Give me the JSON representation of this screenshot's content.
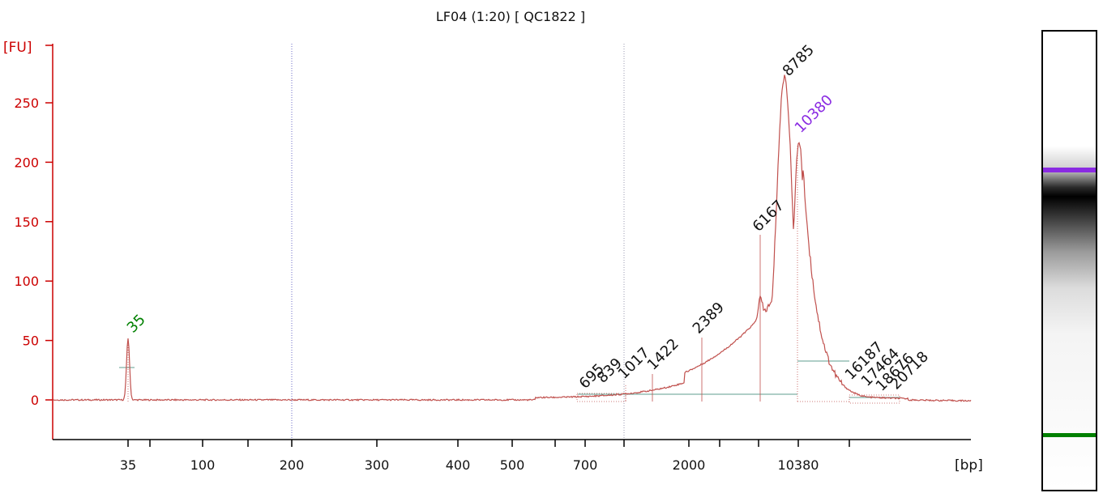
{
  "chart_data": {
    "type": "line",
    "title": "LF04 (1:20)  [ QC1822 ]",
    "ylabel": "[FU]",
    "xlabel": "[bp]",
    "ylim": [
      -30,
      300
    ],
    "y_ticks": [
      0,
      50,
      100,
      150,
      200,
      250
    ],
    "x_tick_labels": [
      "35",
      "100",
      "200",
      "300",
      "400",
      "500",
      "700",
      "2000",
      "10380"
    ],
    "peaks": [
      {
        "label": "35",
        "height": 52,
        "kind": "lower-marker"
      },
      {
        "label": "695",
        "height": 5
      },
      {
        "label": "839",
        "height": 6
      },
      {
        "label": "1017",
        "height": 10
      },
      {
        "label": "1422",
        "height": 20
      },
      {
        "label": "2389",
        "height": 53
      },
      {
        "label": "6167",
        "height": 140
      },
      {
        "label": "8785",
        "height": 272
      },
      {
        "label": "10380",
        "height": 218,
        "kind": "upper-marker"
      },
      {
        "label": "16187",
        "height": 4
      },
      {
        "label": "17464",
        "height": 3
      },
      {
        "label": "18676",
        "height": 2
      },
      {
        "label": "20718",
        "height": 1
      }
    ]
  },
  "colors": {
    "axis": "#cc0000",
    "trace": "#c0504d",
    "lower_marker": "#008000",
    "upper_marker": "#8a2be2",
    "region_line": "#5f9e8f",
    "gel_band_upper": "#8a2be2",
    "gel_band_lower": "#008000"
  }
}
